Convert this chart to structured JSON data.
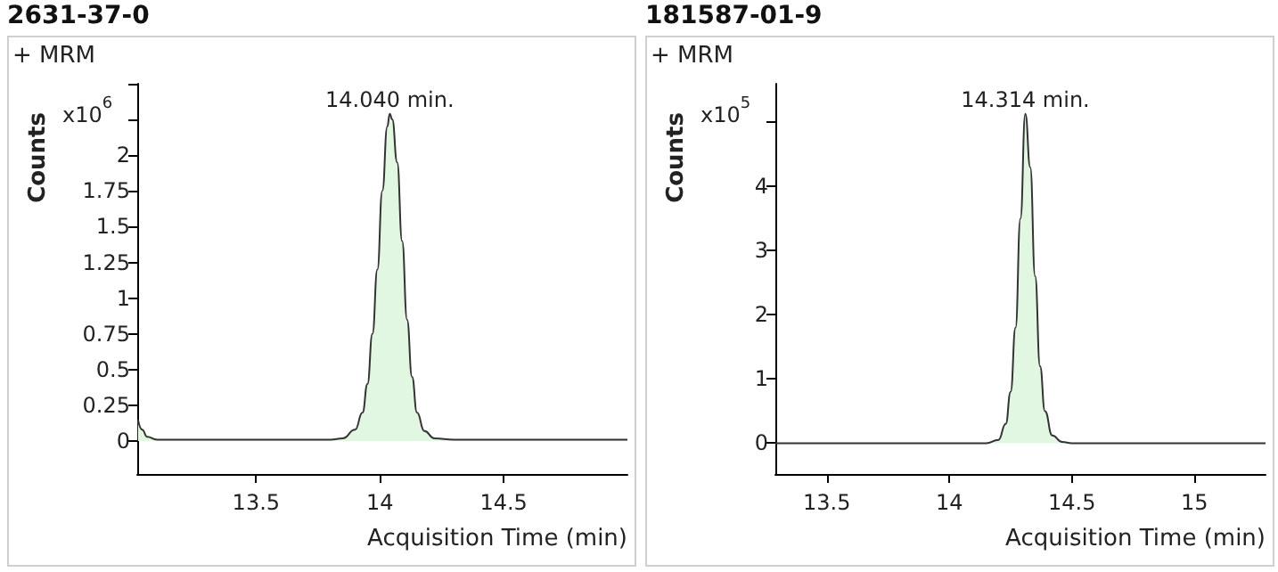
{
  "chart_data": [
    {
      "type": "area",
      "title": "2631-37-0",
      "xlabel": "Acquisition Time (min)",
      "ylabel": "Counts",
      "annotations": [
        "+ MRM",
        "x10$^{6}$",
        {
          "text": "14.040 min.",
          "x": 14.04,
          "y": 2.29
        }
      ],
      "x": [
        13.023,
        13.04,
        13.06,
        13.1,
        13.5,
        13.8,
        13.85,
        13.9,
        13.93,
        13.95,
        13.97,
        13.99,
        14.01,
        14.03,
        14.04,
        14.05,
        14.07,
        14.09,
        14.11,
        14.13,
        14.15,
        14.18,
        14.22,
        14.3,
        15.0
      ],
      "series": [
        {
          "color": "#333333",
          "values": [
            0.15,
            0.08,
            0.03,
            0.01,
            0.01,
            0.01,
            0.02,
            0.08,
            0.2,
            0.4,
            0.75,
            1.2,
            1.75,
            2.2,
            2.29,
            2.25,
            1.95,
            1.4,
            0.85,
            0.45,
            0.2,
            0.07,
            0.02,
            0.01,
            0.01
          ]
        }
      ],
      "xlim": [
        13.02,
        15.0
      ],
      "xticks": [
        13.5,
        14,
        14.5
      ],
      "ylim": [
        -0.23,
        2.5
      ],
      "yticks": [
        0,
        0.25,
        0.5,
        0.75,
        1,
        1.25,
        1.5,
        1.75,
        2,
        {
          "value": 2.25,
          "label": null
        },
        {
          "value": 2.5,
          "label": null
        }
      ],
      "grid": false,
      "marker": "none",
      "line_style": "solid"
    },
    {
      "type": "area",
      "title": "181587-01-9",
      "xlabel": "Acquisition Time (min)",
      "ylabel": "Counts",
      "annotations": [
        "+ MRM",
        "x10$^{5}$",
        {
          "text": "14.314 min.",
          "x": 14.31,
          "y": 5.13
        }
      ],
      "x": [
        13.29,
        14.15,
        14.2,
        14.23,
        14.25,
        14.27,
        14.29,
        14.31,
        14.33,
        14.35,
        14.37,
        14.39,
        14.42,
        14.46,
        14.5,
        15.29
      ],
      "series": [
        {
          "color": "#333333",
          "values": [
            0,
            0,
            0.05,
            0.3,
            0.8,
            1.8,
            3.5,
            5.13,
            4.3,
            2.6,
            1.2,
            0.5,
            0.12,
            0.02,
            0,
            0
          ]
        }
      ],
      "xlim": [
        13.29,
        15.29
      ],
      "xticks": [
        13.5,
        14,
        14.5,
        15
      ],
      "ylim": [
        -0.48,
        5.6
      ],
      "yticks": [
        0,
        1,
        2,
        3,
        4,
        {
          "value": 5,
          "label": null
        }
      ],
      "grid": false,
      "marker": "none",
      "line_style": "solid"
    }
  ]
}
